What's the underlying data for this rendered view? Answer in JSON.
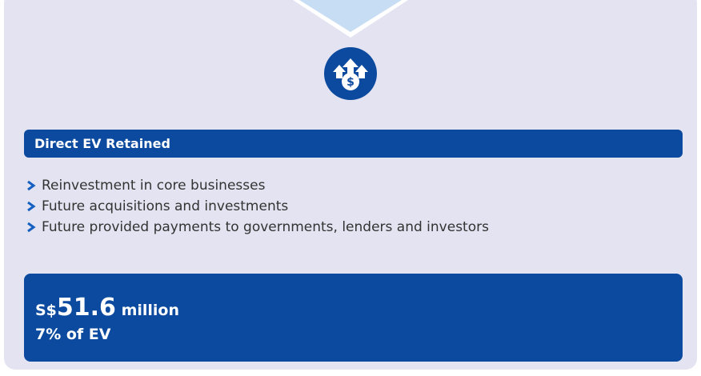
{
  "header": {
    "title": "Direct EV Retained"
  },
  "bullets": [
    "Reinvestment in core businesses",
    "Future acquisitions and investments",
    "Future provided payments to governments, lenders and investors"
  ],
  "summary": {
    "currency": "S$",
    "amount": "51.6",
    "unit": "million",
    "share": "7% of EV"
  }
}
